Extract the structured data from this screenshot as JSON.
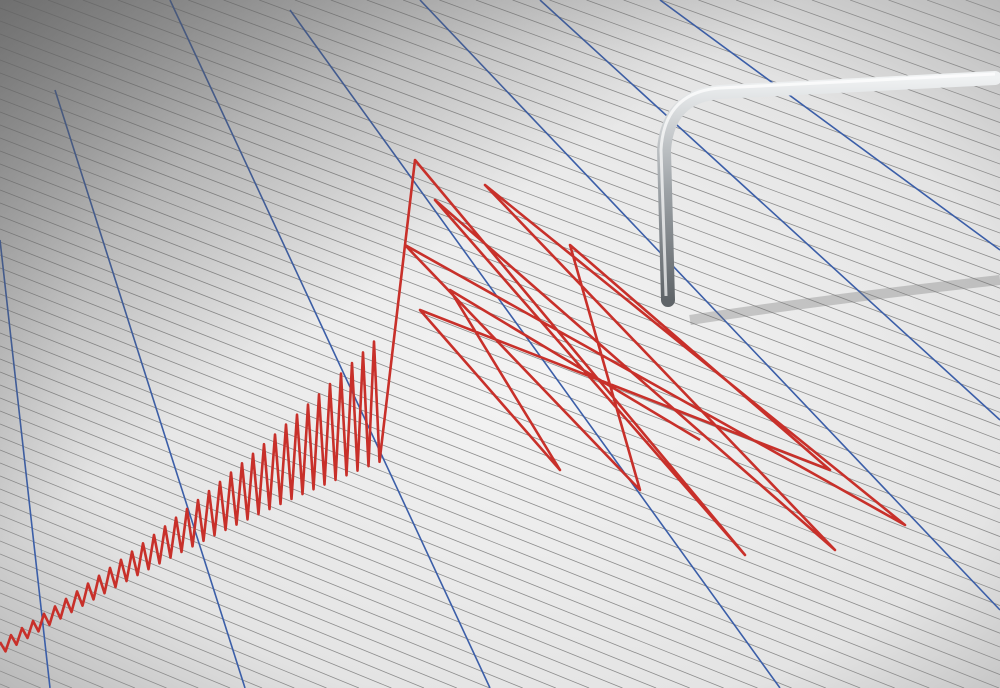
{
  "scene": {
    "subject": "seismograph",
    "colors": {
      "paper_light": "#f2f2f2",
      "paper_shadow": "#a9a9a9",
      "grid_line": "#8c8c8c",
      "blue_line": "#3b5ea8",
      "trace": "#c8302a",
      "needle": "#bfc3c6"
    }
  }
}
